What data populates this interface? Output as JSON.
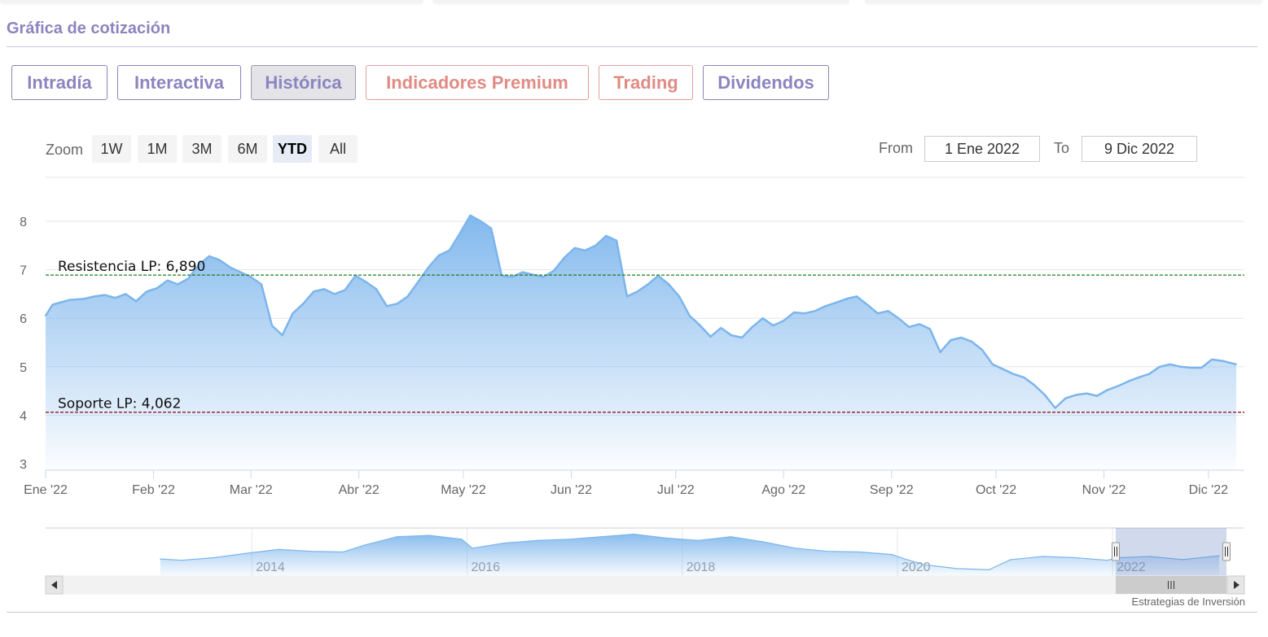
{
  "section_title": "Gráfica de cotización",
  "tabs": [
    {
      "label": "Intradía",
      "state": "normal"
    },
    {
      "label": "Interactiva",
      "state": "normal"
    },
    {
      "label": "Histórica",
      "state": "active"
    },
    {
      "label": "Indicadores Premium",
      "state": "premium"
    },
    {
      "label": "Trading",
      "state": "premium"
    },
    {
      "label": "Dividendos",
      "state": "normal"
    }
  ],
  "zoom": {
    "label": "Zoom",
    "buttons": [
      "1W",
      "1M",
      "3M",
      "6M",
      "YTD",
      "All"
    ],
    "selected": "YTD"
  },
  "range": {
    "from_label": "From",
    "from_value": "1 Ene 2022",
    "to_label": "To",
    "to_value": "9 Dic 2022"
  },
  "credits": "Estrategias de Inversión",
  "colors": {
    "accent": "#8c84bf",
    "premium": "#e08b84",
    "series": "#7cb5ec",
    "resistance": "#1a7f1a",
    "support": "#8b1a2b"
  },
  "chart_data": [
    {
      "type": "area",
      "y_ticks": [
        "3",
        "4",
        "5",
        "6",
        "7",
        "8"
      ],
      "ylim": [
        3,
        8.2
      ],
      "x_ticks": [
        "Ene '22",
        "Feb '22",
        "Mar '22",
        "Abr '22",
        "May '22",
        "Jun '22",
        "Jul '22",
        "Ago '22",
        "Sep '22",
        "Oct '22",
        "Nov '22",
        "Dic '22"
      ],
      "grid": true,
      "series": [
        {
          "x": [
            "2022-01-01",
            "2022-01-03",
            "2022-01-05",
            "2022-01-08",
            "2022-01-12",
            "2022-01-15",
            "2022-01-18",
            "2022-01-21",
            "2022-01-24",
            "2022-01-27",
            "2022-01-30",
            "2022-02-02",
            "2022-02-05",
            "2022-02-08",
            "2022-02-11",
            "2022-02-14",
            "2022-02-17",
            "2022-02-20",
            "2022-02-23",
            "2022-02-26",
            "2022-03-01",
            "2022-03-04",
            "2022-03-07",
            "2022-03-10",
            "2022-03-13",
            "2022-03-16",
            "2022-03-19",
            "2022-03-22",
            "2022-03-25",
            "2022-03-28",
            "2022-03-31",
            "2022-04-03",
            "2022-04-06",
            "2022-04-09",
            "2022-04-12",
            "2022-04-15",
            "2022-04-18",
            "2022-04-21",
            "2022-04-24",
            "2022-04-27",
            "2022-04-30",
            "2022-05-03",
            "2022-05-06",
            "2022-05-09",
            "2022-05-12",
            "2022-05-15",
            "2022-05-18",
            "2022-05-21",
            "2022-05-24",
            "2022-05-27",
            "2022-05-30",
            "2022-06-02",
            "2022-06-05",
            "2022-06-08",
            "2022-06-11",
            "2022-06-14",
            "2022-06-17",
            "2022-06-20",
            "2022-06-23",
            "2022-06-26",
            "2022-06-29",
            "2022-07-02",
            "2022-07-05",
            "2022-07-08",
            "2022-07-11",
            "2022-07-14",
            "2022-07-17",
            "2022-07-20",
            "2022-07-23",
            "2022-07-26",
            "2022-07-29",
            "2022-08-01",
            "2022-08-04",
            "2022-08-07",
            "2022-08-10",
            "2022-08-13",
            "2022-08-16",
            "2022-08-19",
            "2022-08-22",
            "2022-08-25",
            "2022-08-28",
            "2022-08-31",
            "2022-09-03",
            "2022-09-06",
            "2022-09-09",
            "2022-09-12",
            "2022-09-15",
            "2022-09-18",
            "2022-09-21",
            "2022-09-24",
            "2022-09-27",
            "2022-09-30",
            "2022-10-03",
            "2022-10-06",
            "2022-10-09",
            "2022-10-12",
            "2022-10-15",
            "2022-10-18",
            "2022-10-21",
            "2022-10-24",
            "2022-10-27",
            "2022-10-30",
            "2022-11-02",
            "2022-11-05",
            "2022-11-08",
            "2022-11-11",
            "2022-11-14",
            "2022-11-17",
            "2022-11-20",
            "2022-11-23",
            "2022-11-26",
            "2022-11-29",
            "2022-12-02",
            "2022-12-05",
            "2022-12-09"
          ],
          "values": [
            6.05,
            6.28,
            6.32,
            6.38,
            6.4,
            6.45,
            6.48,
            6.42,
            6.5,
            6.35,
            6.55,
            6.62,
            6.78,
            6.7,
            6.82,
            7.1,
            7.28,
            7.2,
            7.05,
            6.95,
            6.85,
            6.7,
            5.85,
            5.65,
            6.1,
            6.3,
            6.55,
            6.6,
            6.5,
            6.58,
            6.88,
            6.75,
            6.6,
            6.25,
            6.3,
            6.45,
            6.75,
            7.05,
            7.3,
            7.4,
            7.75,
            8.12,
            8.0,
            7.85,
            6.88,
            6.85,
            6.95,
            6.9,
            6.85,
            6.98,
            7.25,
            7.45,
            7.4,
            7.5,
            7.7,
            7.6,
            6.45,
            6.55,
            6.7,
            6.88,
            6.7,
            6.45,
            6.05,
            5.85,
            5.62,
            5.8,
            5.65,
            5.6,
            5.82,
            6.0,
            5.85,
            5.95,
            6.12,
            6.1,
            6.15,
            6.25,
            6.32,
            6.4,
            6.45,
            6.28,
            6.1,
            6.15,
            6.0,
            5.82,
            5.88,
            5.78,
            5.3,
            5.55,
            5.6,
            5.52,
            5.35,
            5.05,
            4.95,
            4.85,
            4.78,
            4.62,
            4.42,
            4.15,
            4.35,
            4.42,
            4.45,
            4.4,
            4.52,
            4.6,
            4.7,
            4.78,
            4.85,
            5.0,
            5.05,
            5.0,
            4.98,
            4.98,
            5.15,
            5.12,
            5.05
          ]
        }
      ],
      "annotations": [
        {
          "label": "Resistencia LP: 6,890",
          "value": 6.89,
          "kind": "resistance"
        },
        {
          "label": "Soporte LP: 4,062",
          "value": 4.062,
          "kind": "support"
        }
      ]
    },
    {
      "type": "area",
      "x_ticks": [
        "2014",
        "2016",
        "2018",
        "2020",
        "2022"
      ],
      "series": [
        {
          "x": [
            2013.1,
            2013.3,
            2013.6,
            2013.9,
            2014.2,
            2014.5,
            2014.8,
            2015.0,
            2015.3,
            2015.6,
            2015.9,
            2016.0,
            2016.3,
            2016.6,
            2016.9,
            2017.2,
            2017.5,
            2017.8,
            2018.1,
            2018.4,
            2018.7,
            2019.0,
            2019.3,
            2019.6,
            2019.9,
            2020.0,
            2020.2,
            2020.5,
            2020.8,
            2021.0,
            2021.3,
            2021.6,
            2021.9,
            2022.0,
            2022.3,
            2022.6,
            2022.94
          ],
          "values": [
            4.3,
            4.1,
            4.5,
            5.2,
            5.8,
            5.5,
            5.4,
            6.5,
            7.8,
            8.0,
            7.4,
            6.0,
            6.8,
            7.2,
            7.4,
            7.8,
            8.2,
            7.6,
            7.2,
            7.8,
            7.0,
            6.0,
            5.5,
            5.4,
            5.0,
            4.4,
            3.4,
            2.8,
            2.6,
            4.2,
            4.7,
            4.5,
            4.1,
            4.5,
            4.7,
            4.2,
            4.8
          ]
        }
      ],
      "selected_range": [
        "2022",
        "2022"
      ]
    }
  ]
}
